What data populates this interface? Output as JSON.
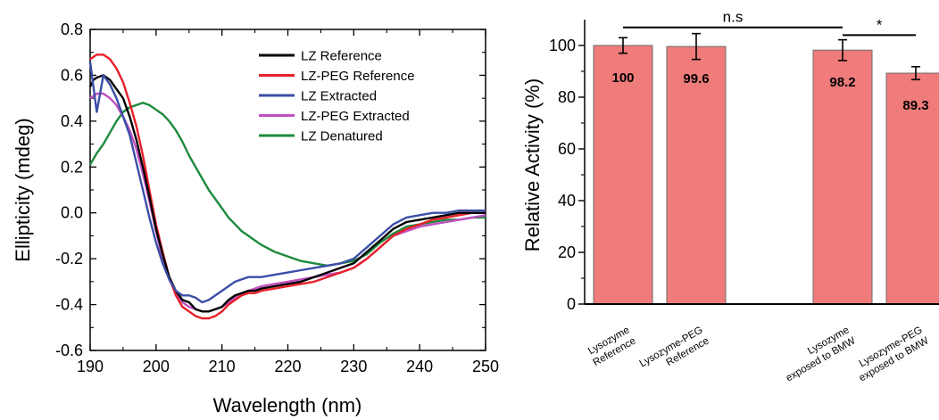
{
  "chart_data": [
    {
      "type": "line",
      "xlabel": "Wavelength (nm)",
      "ylabel": "Ellipticity (mdeg)",
      "xlim": [
        190,
        250
      ],
      "ylim": [
        -0.6,
        0.8
      ],
      "xticks": [
        "190",
        "200",
        "210",
        "220",
        "230",
        "240",
        "250"
      ],
      "yticks": [
        "-0.6",
        "-0.4",
        "-0.2",
        "0.0",
        "0.2",
        "0.4",
        "0.6",
        "0.8"
      ],
      "legend_position": "top-right",
      "series": [
        {
          "name": "LZ Reference",
          "color": "#000000",
          "x": [
            190,
            190.5,
            191,
            192,
            193,
            194,
            195,
            196,
            197,
            198,
            199,
            200,
            201,
            202,
            203,
            204,
            205,
            206,
            207,
            208,
            209,
            210,
            211,
            212,
            213,
            214,
            215,
            216,
            218,
            220,
            222,
            224,
            226,
            228,
            230,
            232,
            234,
            236,
            238,
            240,
            242,
            244,
            246,
            248,
            250
          ],
          "y": [
            0.55,
            0.58,
            0.59,
            0.6,
            0.58,
            0.54,
            0.5,
            0.42,
            0.32,
            0.2,
            0.07,
            -0.07,
            -0.18,
            -0.28,
            -0.34,
            -0.38,
            -0.39,
            -0.42,
            -0.43,
            -0.43,
            -0.42,
            -0.41,
            -0.38,
            -0.36,
            -0.35,
            -0.34,
            -0.34,
            -0.33,
            -0.32,
            -0.31,
            -0.3,
            -0.28,
            -0.26,
            -0.24,
            -0.22,
            -0.17,
            -0.12,
            -0.07,
            -0.04,
            -0.03,
            -0.02,
            -0.01,
            0.0,
            0.0,
            0.0
          ]
        },
        {
          "name": "LZ-PEG Reference",
          "color": "#e8202a",
          "x": [
            190,
            191,
            192,
            193,
            194,
            195,
            196,
            197,
            198,
            199,
            200,
            201,
            202,
            203,
            204,
            205,
            206,
            207,
            208,
            209,
            210,
            211,
            212,
            213,
            214,
            215,
            216,
            218,
            220,
            222,
            224,
            226,
            228,
            230,
            232,
            234,
            236,
            238,
            240,
            242,
            244,
            246,
            248,
            250
          ],
          "y": [
            0.67,
            0.69,
            0.69,
            0.67,
            0.63,
            0.57,
            0.48,
            0.38,
            0.25,
            0.1,
            -0.05,
            -0.17,
            -0.28,
            -0.36,
            -0.41,
            -0.43,
            -0.45,
            -0.46,
            -0.46,
            -0.45,
            -0.43,
            -0.4,
            -0.38,
            -0.36,
            -0.35,
            -0.35,
            -0.34,
            -0.33,
            -0.32,
            -0.31,
            -0.3,
            -0.28,
            -0.26,
            -0.24,
            -0.2,
            -0.15,
            -0.1,
            -0.07,
            -0.05,
            -0.03,
            -0.02,
            -0.01,
            0.0,
            0.0
          ]
        },
        {
          "name": "LZ Extracted",
          "color": "#3b4ea6",
          "x": [
            190,
            190.5,
            191,
            191.5,
            192,
            193,
            194,
            195,
            196,
            197,
            198,
            199,
            200,
            201,
            202,
            203,
            204,
            205,
            206,
            207,
            208,
            209,
            210,
            211,
            212,
            213,
            214,
            215,
            216,
            218,
            220,
            222,
            224,
            226,
            228,
            230,
            232,
            234,
            236,
            238,
            240,
            242,
            244,
            246,
            248,
            250
          ],
          "y": [
            0.66,
            0.55,
            0.44,
            0.52,
            0.6,
            0.56,
            0.5,
            0.42,
            0.34,
            0.22,
            0.1,
            -0.02,
            -0.13,
            -0.22,
            -0.29,
            -0.34,
            -0.36,
            -0.36,
            -0.37,
            -0.39,
            -0.38,
            -0.36,
            -0.34,
            -0.32,
            -0.3,
            -0.29,
            -0.28,
            -0.28,
            -0.28,
            -0.27,
            -0.26,
            -0.25,
            -0.24,
            -0.23,
            -0.22,
            -0.2,
            -0.15,
            -0.1,
            -0.05,
            -0.02,
            -0.01,
            0.0,
            0.0,
            0.01,
            0.01,
            0.01
          ]
        },
        {
          "name": "LZ-PEG Extracted",
          "color": "#c04fc0",
          "x": [
            190,
            191,
            192,
            193,
            194,
            195,
            196,
            197,
            198,
            199,
            200,
            201,
            202,
            203,
            204,
            205,
            206,
            207,
            208,
            209,
            210,
            211,
            212,
            213,
            214,
            215,
            216,
            218,
            220,
            222,
            224,
            226,
            228,
            230,
            232,
            234,
            236,
            238,
            240,
            242,
            244,
            246,
            248,
            250
          ],
          "y": [
            0.5,
            0.52,
            0.52,
            0.5,
            0.47,
            0.42,
            0.36,
            0.28,
            0.17,
            0.05,
            -0.08,
            -0.2,
            -0.29,
            -0.35,
            -0.39,
            -0.41,
            -0.42,
            -0.43,
            -0.43,
            -0.42,
            -0.41,
            -0.39,
            -0.37,
            -0.35,
            -0.34,
            -0.33,
            -0.32,
            -0.31,
            -0.3,
            -0.29,
            -0.28,
            -0.27,
            -0.26,
            -0.24,
            -0.2,
            -0.15,
            -0.1,
            -0.08,
            -0.06,
            -0.05,
            -0.04,
            -0.03,
            -0.02,
            -0.01
          ]
        },
        {
          "name": "LZ Denatured",
          "color": "#1e8a3c",
          "x": [
            190,
            191,
            192,
            193,
            194,
            195,
            196,
            197,
            198,
            199,
            200,
            201,
            202,
            203,
            204,
            205,
            206,
            207,
            208,
            209,
            210,
            211,
            212,
            213,
            214,
            215,
            216,
            218,
            220,
            222,
            224,
            226,
            228,
            230,
            232,
            234,
            236,
            238,
            240,
            242,
            244,
            246,
            248,
            250
          ],
          "y": [
            0.21,
            0.26,
            0.3,
            0.35,
            0.4,
            0.44,
            0.46,
            0.47,
            0.48,
            0.47,
            0.45,
            0.43,
            0.4,
            0.36,
            0.31,
            0.25,
            0.2,
            0.15,
            0.1,
            0.06,
            0.02,
            -0.02,
            -0.05,
            -0.08,
            -0.1,
            -0.12,
            -0.14,
            -0.17,
            -0.19,
            -0.21,
            -0.22,
            -0.23,
            -0.22,
            -0.21,
            -0.18,
            -0.13,
            -0.09,
            -0.06,
            -0.05,
            -0.04,
            -0.03,
            -0.03,
            -0.02,
            -0.02
          ]
        }
      ]
    },
    {
      "type": "bar",
      "xlabel": "",
      "ylabel": "Relative Activity (%)",
      "ylim": [
        0,
        110
      ],
      "yticks": [
        "0",
        "20",
        "40",
        "60",
        "80",
        "100"
      ],
      "categories": [
        "Lysozyme Reference",
        "Lysozyme-PEG Reference",
        "Lysozyme exposed to BMW",
        "Lysozyme-PEG exposed to BMW"
      ],
      "category_lines": [
        [
          "Lysozyme",
          "Reference"
        ],
        [
          "Lysozyme-PEG",
          "Reference"
        ],
        [
          "Lysozyme",
          "exposed to BMW"
        ],
        [
          "Lysozyme-PEG",
          "exposed to BMW"
        ]
      ],
      "positions": [
        1,
        2,
        4,
        5
      ],
      "values": [
        100,
        99.6,
        98.2,
        89.3
      ],
      "value_labels": [
        "100",
        "99.6",
        "98.2",
        "89.3"
      ],
      "errors": [
        3,
        5,
        4,
        2.5
      ],
      "bar_color": "#f07b7b",
      "significance": [
        {
          "from": 0,
          "to": 2,
          "level": 107,
          "label": "n.s"
        },
        {
          "from": 2,
          "to": 3,
          "level": 104,
          "label": "*"
        }
      ]
    }
  ]
}
